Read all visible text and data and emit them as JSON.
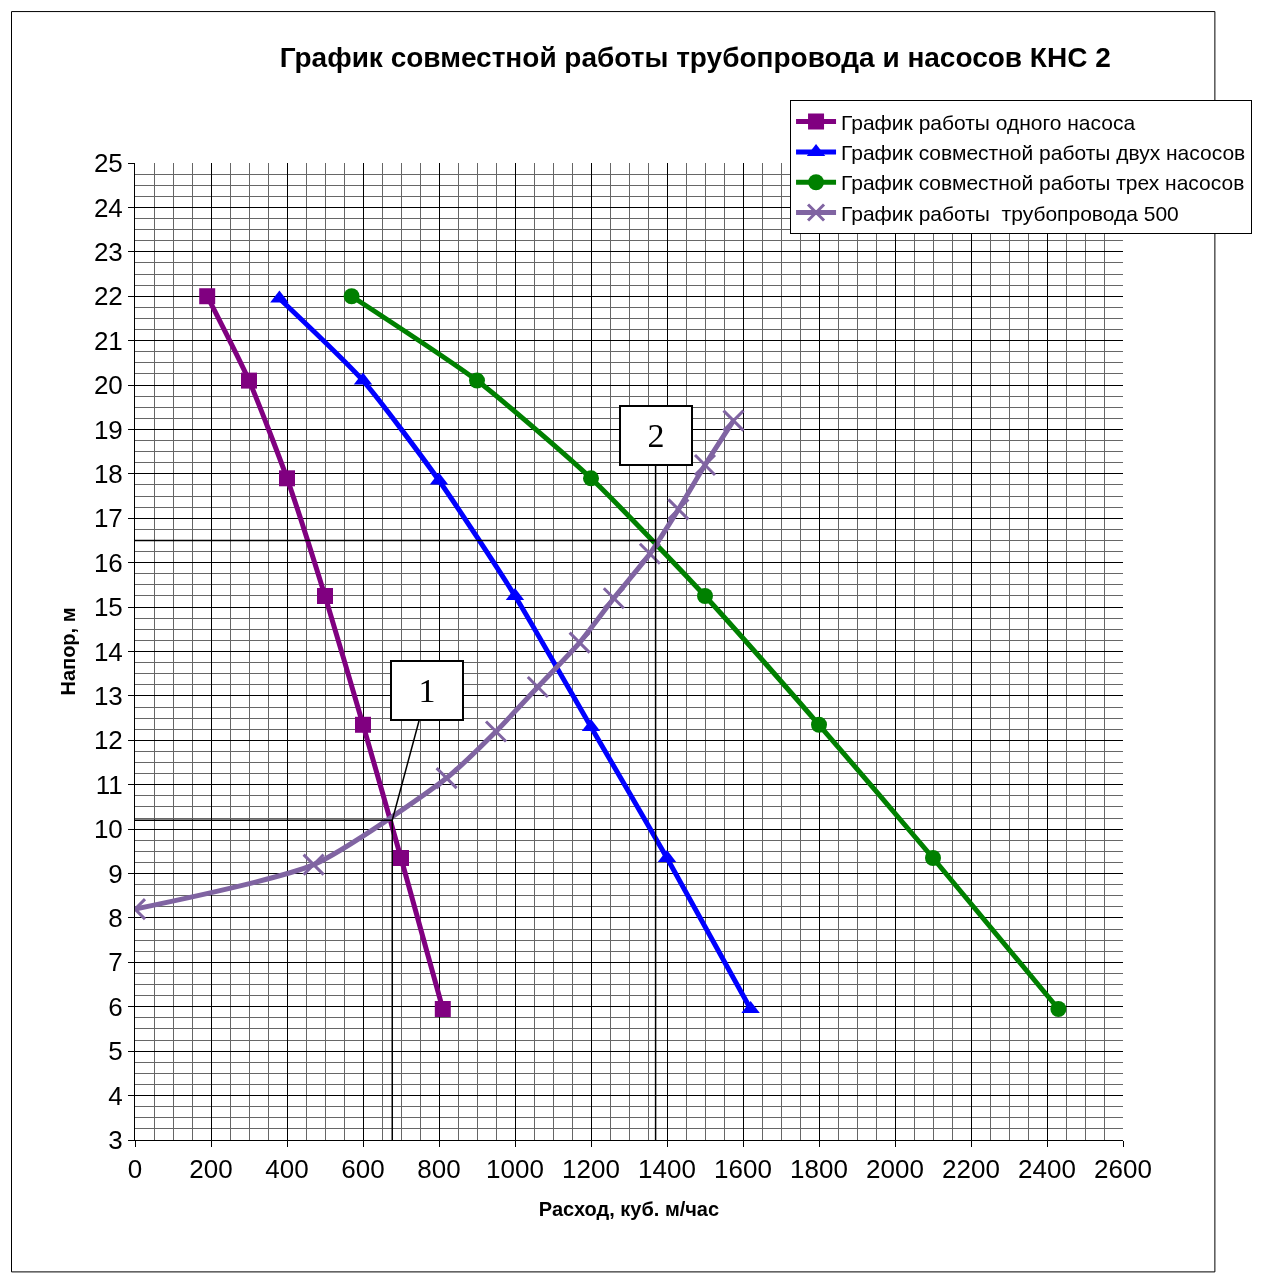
{
  "chart_data": {
    "type": "line",
    "title": "График совместной работы трубопровода и насосов КНС 2",
    "xlabel": "Расход, куб. м/час",
    "ylabel": "Напор, м",
    "xlim": [
      0,
      2600
    ],
    "xticks": [
      0,
      200,
      400,
      600,
      800,
      1000,
      1200,
      1400,
      1600,
      1800,
      2000,
      2200,
      2400,
      2600
    ],
    "ylim": [
      3,
      25
    ],
    "yticks": [
      3,
      4,
      5,
      6,
      7,
      8,
      9,
      10,
      11,
      12,
      13,
      14,
      15,
      16,
      17,
      18,
      19,
      20,
      21,
      22,
      23,
      24,
      25
    ],
    "grid": true,
    "legend": "top right",
    "line_style": "solid",
    "series": [
      {
        "name": "График работы одного насоса",
        "color": "#800080",
        "marker": "square",
        "x": [
          190,
          300,
          400,
          500,
          600,
          700,
          810
        ],
        "values": [
          22,
          20.1,
          17.9,
          15.25,
          12.35,
          9.35,
          5.95
        ]
      },
      {
        "name": "График совместной работы двух насосов",
        "color": "#0000ff",
        "marker": "triangle",
        "x": [
          380,
          600,
          800,
          1000,
          1200,
          1400,
          1620
        ],
        "values": [
          21.95,
          20.1,
          17.85,
          15.25,
          12.3,
          9.35,
          5.95
        ]
      },
      {
        "name": "График совместной работы трех насосов",
        "color": "#008000",
        "marker": "circle",
        "x": [
          570,
          900,
          1200,
          1500,
          1800,
          2100,
          2430
        ],
        "values": [
          22,
          20.1,
          17.9,
          15.25,
          12.35,
          9.35,
          5.95
        ]
      },
      {
        "name": "График работы  трубопровода 500",
        "color": "#8064a2",
        "marker": "cross",
        "x": [
          0,
          470,
          820,
          950,
          1060,
          1170,
          1260,
          1355,
          1430,
          1500,
          1575
        ],
        "values": [
          8.2,
          9.2,
          11.15,
          12.2,
          13.2,
          14.2,
          15.2,
          16.2,
          17.2,
          18.2,
          19.2
        ]
      },
      {
        "color": "#000000",
        "marker": "none",
        "x": [
          0,
          1370,
          1370
        ],
        "values": [
          16.5,
          16.5,
          3
        ]
      },
      {
        "color": "#000000",
        "marker": "none",
        "x": [
          0,
          677,
          677
        ],
        "values": [
          10.2,
          10.2,
          3
        ]
      }
    ],
    "annotations": [
      {
        "text": "1",
        "x": 677,
        "y": 10.2
      },
      {
        "text": "2",
        "x": 1370,
        "y": 16.5
      }
    ]
  }
}
